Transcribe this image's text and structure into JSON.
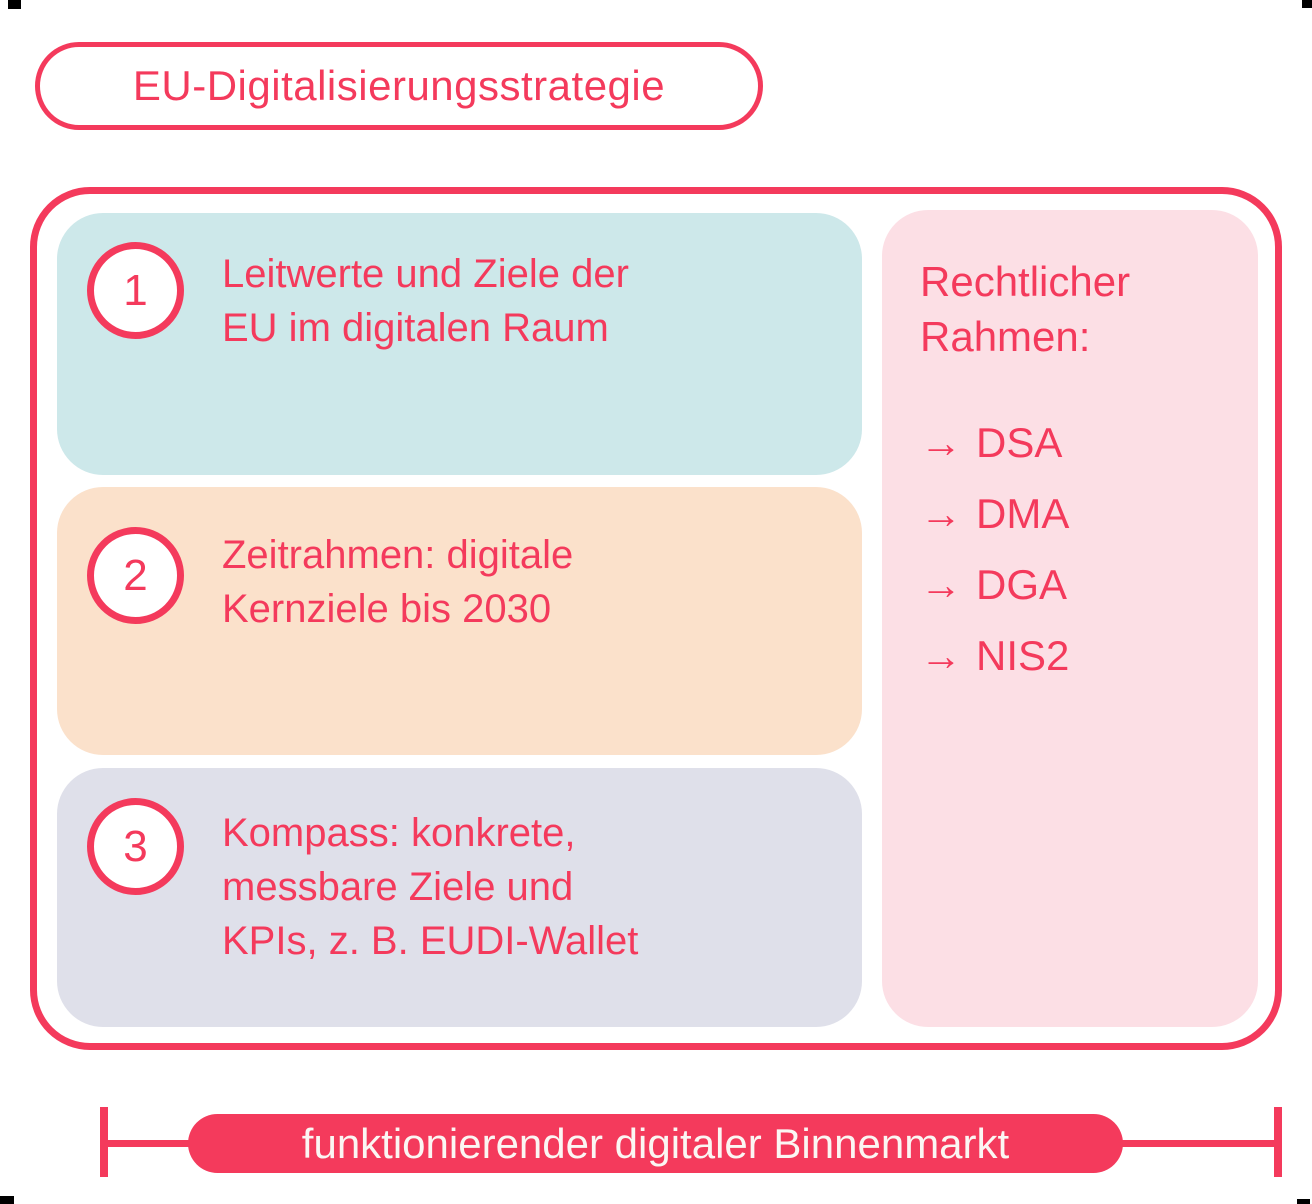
{
  "title": "EU-Digitalisierungsstrategie",
  "cards": [
    {
      "number": "1",
      "text": "Leitwerte und Ziele der\nEU im digitalen Raum",
      "color": "#CDE8EA"
    },
    {
      "number": "2",
      "text": "Zeitrahmen: digitale\nKernziele bis 2030",
      "color": "#FBE1CB"
    },
    {
      "number": "3",
      "text": "Kompass: konkrete,\nmessbare Ziele und\nKPIs, z. B. EUDI-Wallet",
      "color": "#DFE0EA"
    }
  ],
  "legal": {
    "heading": "Rechtlicher\nRahmen:",
    "arrow": "→",
    "items": [
      "DSA",
      "DMA",
      "DGA",
      "NIS2"
    ],
    "color": "#FCDFE5"
  },
  "footer": {
    "label": "funktionierender digitaler Binnenmarkt"
  },
  "colors": {
    "accent": "#F43A5C",
    "footer_text": "#FBF6F3",
    "crop_mark": "#000000"
  }
}
